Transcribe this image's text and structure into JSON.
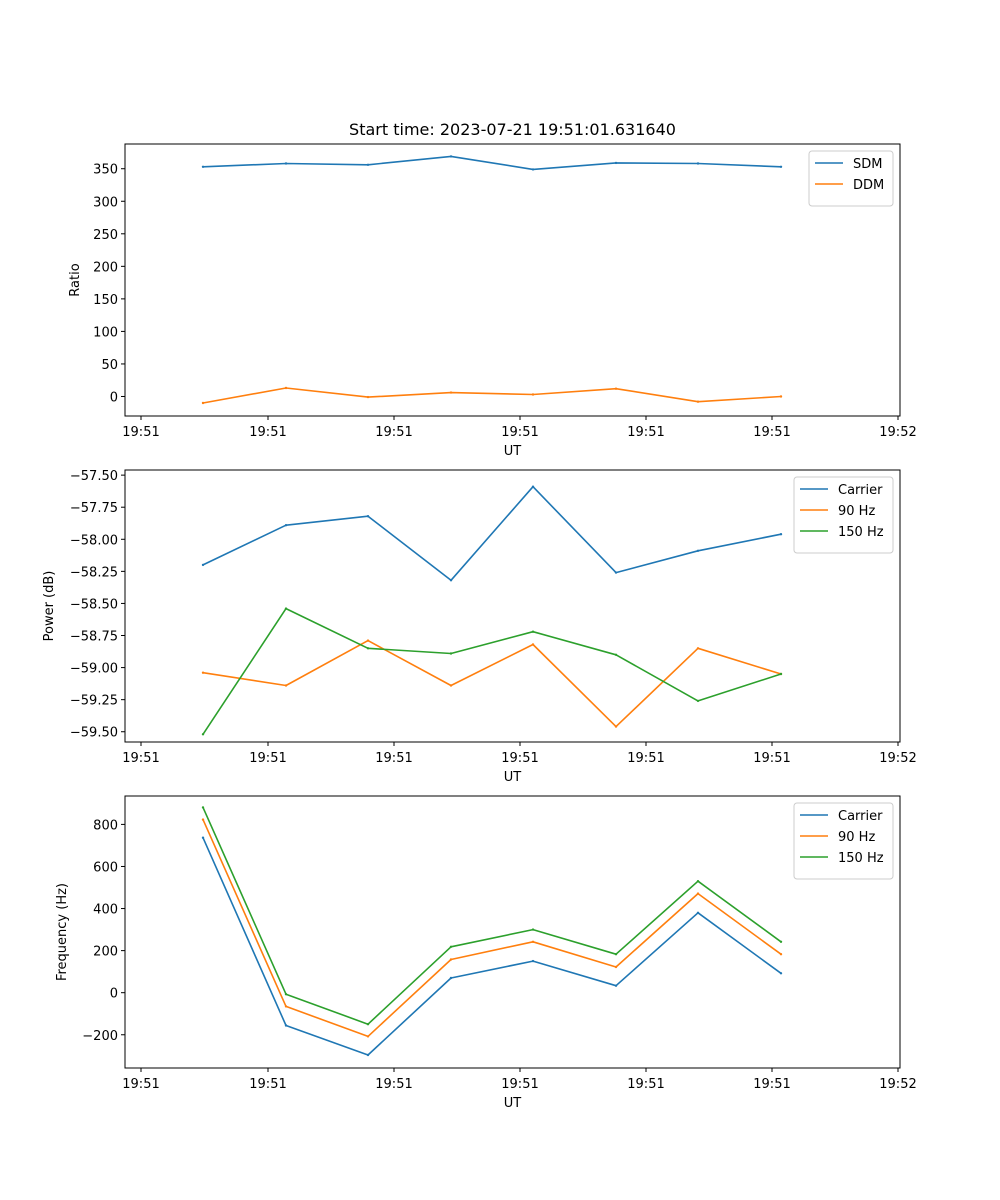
{
  "chart_data": [
    {
      "type": "line",
      "title": "Start time: 2023-07-21 19:51:01.631640",
      "xlabel": "UT",
      "ylabel": "Ratio",
      "x_tick_labels": [
        "19:51",
        "19:51",
        "19:51",
        "19:51",
        "19:51",
        "19:51",
        "19:52"
      ],
      "y_ticks": [
        "0",
        "50",
        "100",
        "150",
        "200",
        "250",
        "300",
        "350"
      ],
      "ylim": [
        -30,
        388
      ],
      "legend": "top-right",
      "series": [
        {
          "name": "SDM",
          "color": "#1f77b4",
          "values": [
            353,
            358,
            356,
            369,
            349,
            359,
            358,
            353
          ]
        },
        {
          "name": "DDM",
          "color": "#ff7f0e",
          "values": [
            -10,
            13,
            -1,
            6,
            3,
            12,
            -8,
            0
          ]
        }
      ]
    },
    {
      "type": "line",
      "title": "",
      "xlabel": "UT",
      "ylabel": "Power (dB)",
      "x_tick_labels": [
        "19:51",
        "19:51",
        "19:51",
        "19:51",
        "19:51",
        "19:51",
        "19:52"
      ],
      "y_ticks": [
        "−59.50",
        "−59.25",
        "−59.00",
        "−58.75",
        "−58.50",
        "−58.25",
        "−58.00",
        "−57.75",
        "−57.50"
      ],
      "ylim": [
        -59.58,
        -57.46
      ],
      "legend": "top-right",
      "series": [
        {
          "name": "Carrier",
          "color": "#1f77b4",
          "values": [
            -58.2,
            -57.89,
            -57.82,
            -58.32,
            -57.59,
            -58.26,
            -58.09,
            -57.96
          ]
        },
        {
          "name": "90 Hz",
          "color": "#ff7f0e",
          "values": [
            -59.04,
            -59.14,
            -58.79,
            -59.14,
            -58.82,
            -59.46,
            -58.85,
            -59.05
          ]
        },
        {
          "name": "150 Hz",
          "color": "#2ca02c",
          "values": [
            -59.52,
            -58.54,
            -58.85,
            -58.89,
            -58.72,
            -58.9,
            -59.26,
            -59.05
          ]
        }
      ]
    },
    {
      "type": "line",
      "title": "",
      "xlabel": "UT",
      "ylabel": "Frequency (Hz)",
      "x_tick_labels": [
        "19:51",
        "19:51",
        "19:51",
        "19:51",
        "19:51",
        "19:51",
        "19:52"
      ],
      "y_ticks": [
        "−200",
        "0",
        "200",
        "400",
        "600",
        "800"
      ],
      "ylim": [
        -358,
        935
      ],
      "legend": "top-right",
      "series": [
        {
          "name": "Carrier",
          "color": "#1f77b4",
          "values": [
            737,
            -156,
            -296,
            70,
            150,
            33,
            380,
            92
          ]
        },
        {
          "name": "90 Hz",
          "color": "#ff7f0e",
          "values": [
            823,
            -65,
            -208,
            158,
            242,
            122,
            471,
            183
          ]
        },
        {
          "name": "150 Hz",
          "color": "#2ca02c",
          "values": [
            881,
            -7,
            -150,
            218,
            300,
            183,
            530,
            242
          ]
        }
      ]
    }
  ]
}
